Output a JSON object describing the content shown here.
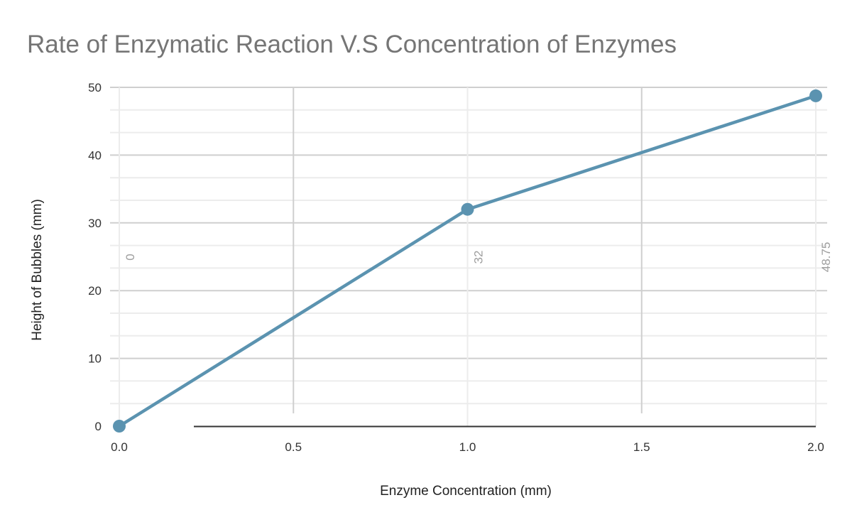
{
  "chart_data": {
    "type": "line",
    "title": "Rate of Enzymatic Reaction V.S Concentration of Enzymes",
    "xlabel": "Enzyme Concentration (mm)",
    "ylabel": "Height of Bubbles (mm)",
    "x": [
      0.0,
      1.0,
      2.0
    ],
    "values": [
      0,
      32,
      48.75
    ],
    "data_labels": [
      "0",
      "32",
      "48.75"
    ],
    "xlim": [
      0,
      2
    ],
    "ylim": [
      0,
      50
    ],
    "x_ticks": [
      "0.0",
      "0.5",
      "1.0",
      "1.5",
      "2.0"
    ],
    "y_ticks": [
      "0",
      "10",
      "20",
      "30",
      "40",
      "50"
    ],
    "grid": true,
    "legend": "none",
    "series_color": "#5b93b0"
  }
}
